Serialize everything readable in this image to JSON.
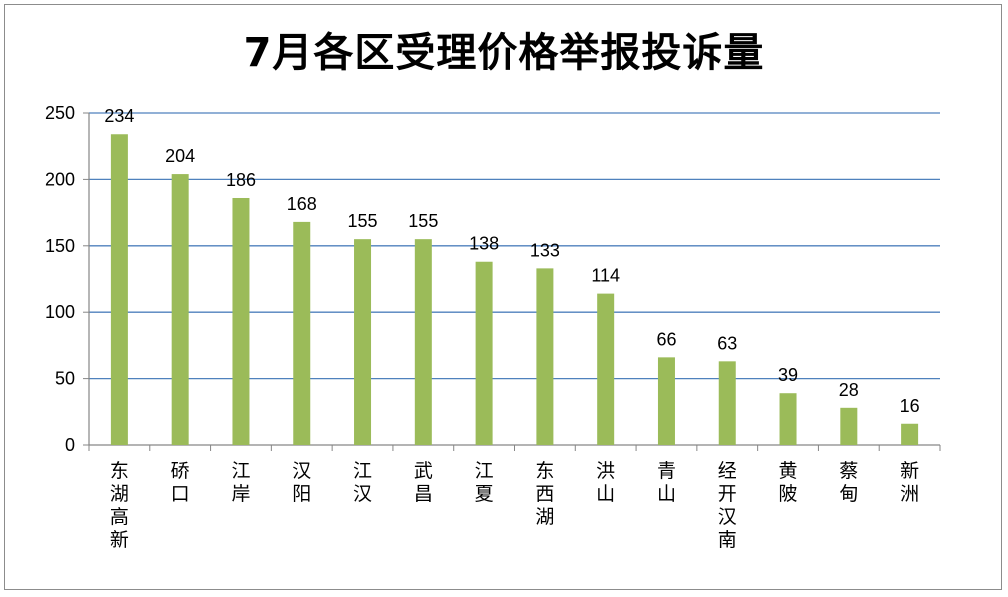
{
  "chart_data": {
    "type": "bar",
    "title": "7月各区受理价格举报投诉量",
    "xlabel": "",
    "ylabel": "",
    "categories": [
      "东湖高新",
      "硚口",
      "江岸",
      "汉阳",
      "江汉",
      "武昌",
      "江夏",
      "东西湖",
      "洪山",
      "青山",
      "经开汉南",
      "黄陂",
      "蔡甸",
      "新洲"
    ],
    "values": [
      234,
      204,
      186,
      168,
      155,
      155,
      138,
      133,
      114,
      66,
      63,
      39,
      28,
      16
    ],
    "ylim": [
      0,
      250
    ],
    "yticks": [
      0,
      50,
      100,
      150,
      200,
      250
    ],
    "grid": true,
    "data_labels": true,
    "legend": "none",
    "colors": {
      "bar": "#9bbb59",
      "grid": "#4f81bd",
      "axis": "#868686"
    }
  }
}
